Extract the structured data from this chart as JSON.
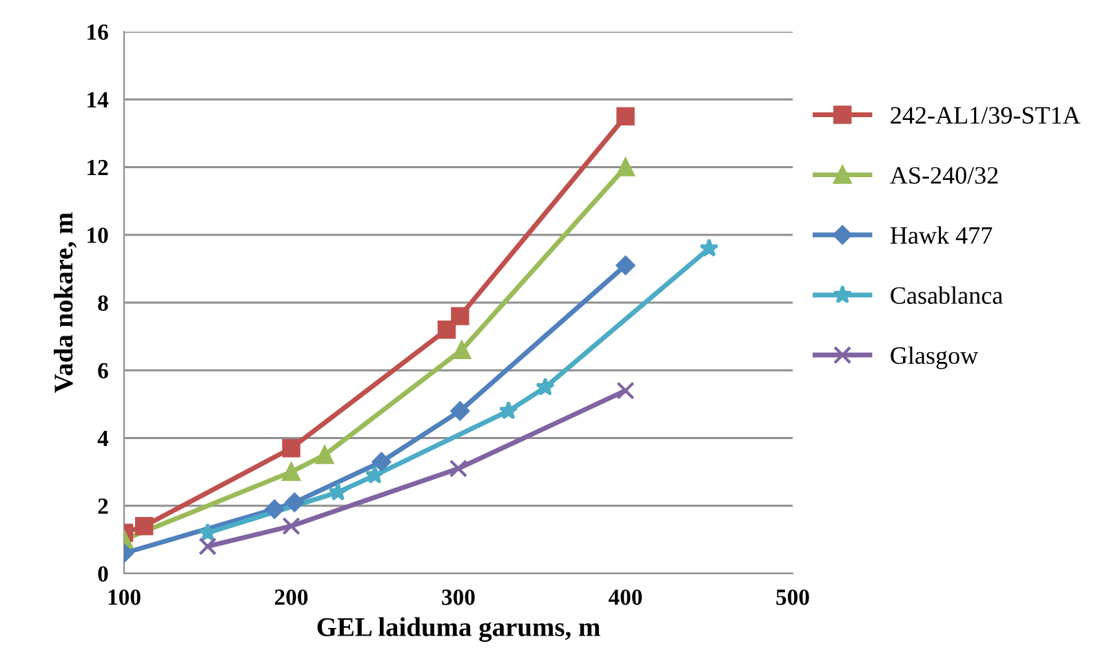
{
  "chart_data": {
    "type": "line",
    "xlabel": "GEL laiduma garums, m",
    "ylabel": "Vada nokare, m",
    "xlim": [
      100,
      500
    ],
    "xticks": [
      100,
      200,
      300,
      400,
      500
    ],
    "ylim": [
      0,
      16
    ],
    "yticks": [
      0,
      2,
      4,
      6,
      8,
      10,
      12,
      14,
      16
    ],
    "grid": "y",
    "legend": "right",
    "series": [
      {
        "name": "242-AL1/39-ST1A",
        "color": "#c0504d",
        "marker": "square",
        "x": [
          100,
          112,
          200,
          293,
          301,
          400
        ],
        "values": [
          1.2,
          1.4,
          3.7,
          7.2,
          7.6,
          13.5
        ]
      },
      {
        "name": "AS-240/32",
        "color": "#9bbb59",
        "marker": "triangle",
        "x": [
          100,
          200,
          220,
          302,
          400
        ],
        "values": [
          1.0,
          3.0,
          3.5,
          6.6,
          12.0
        ]
      },
      {
        "name": "Hawk 477",
        "color": "#4f81bd",
        "marker": "diamond",
        "x": [
          100,
          190,
          202,
          254,
          301,
          400
        ],
        "values": [
          0.6,
          1.9,
          2.1,
          3.3,
          4.8,
          9.1
        ]
      },
      {
        "name": "Casablanca",
        "color": "#4bacc6",
        "marker": "star",
        "x": [
          150,
          228,
          250,
          330,
          352,
          450
        ],
        "values": [
          1.2,
          2.4,
          2.9,
          4.8,
          5.5,
          9.6
        ]
      },
      {
        "name": "Glasgow",
        "color": "#8064a2",
        "marker": "cross",
        "x": [
          150,
          200,
          300,
          400
        ],
        "values": [
          0.8,
          1.4,
          3.1,
          5.4
        ]
      }
    ]
  }
}
